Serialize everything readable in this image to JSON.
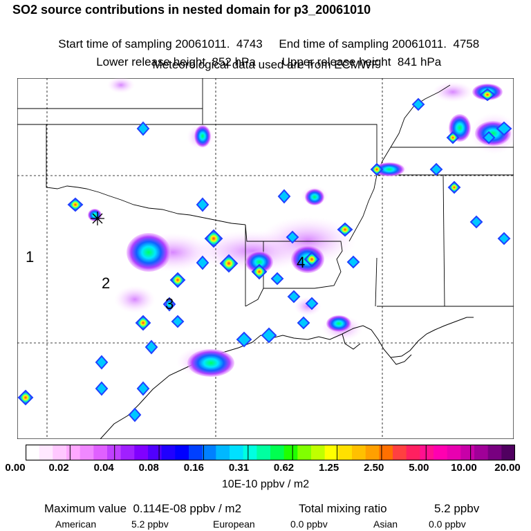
{
  "header": {
    "title": "SO2 source contributions in nested domain for p3_20061010",
    "start_label": "Start time of sampling 20061011.  4743",
    "end_label": "End time of sampling 20061011.  4758",
    "lower_label": "Lower release height  852 hPa",
    "upper_label": "Upper release height  841 hPa",
    "met_label": "Meteorological data used are from ECMWF"
  },
  "map": {
    "region_labels": [
      "1",
      "2",
      "3",
      "4"
    ]
  },
  "legend": {
    "ticks": [
      "0.00",
      "0.02",
      "0.04",
      "0.08",
      "0.16",
      "0.31",
      "0.62",
      "1.25",
      "2.50",
      "5.00",
      "10.00",
      "20.00"
    ],
    "colors": [
      "#ffffff",
      "#ffe8ff",
      "#ffc8ff",
      "#ffa8ff",
      "#f088ff",
      "#e060ff",
      "#c040ff",
      "#a020ff",
      "#8000ff",
      "#5000ff",
      "#2000ff",
      "#0000ff",
      "#0040ff",
      "#0080ff",
      "#00b8ff",
      "#00e0ff",
      "#00ffe0",
      "#00ffa0",
      "#00ff50",
      "#20ff00",
      "#80ff00",
      "#c0ff00",
      "#ffff00",
      "#ffe000",
      "#ffc000",
      "#ffa000",
      "#ff7000",
      "#ff4040",
      "#ff2060",
      "#ff1090",
      "#ff00b0",
      "#e800b0",
      "#c800a8",
      "#a00098",
      "#780080",
      "#500060"
    ],
    "units": "10E-10 ppbv / m2"
  },
  "summary": {
    "max_label": "Maximum value  0.114E-08 ppbv / m2",
    "total_label": "Total mixing ratio",
    "total_value": "5.2 ppbv",
    "regions": [
      {
        "name": "American",
        "value": "5.2 ppbv"
      },
      {
        "name": "European",
        "value": "0.0 ppbv"
      },
      {
        "name": "Asian",
        "value": "0.0 ppbv"
      }
    ]
  }
}
